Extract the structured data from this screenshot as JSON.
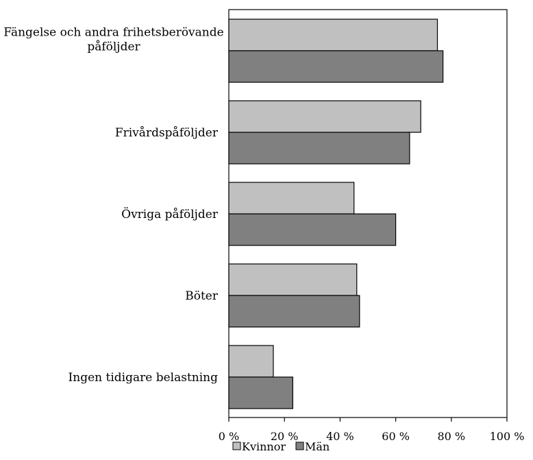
{
  "chart_data": {
    "type": "bar",
    "orientation": "horizontal",
    "categories": [
      [
        "Fängelse och andra frihetsberövande",
        "påföljder"
      ],
      [
        "Frivårdspåföljder"
      ],
      [
        "Övriga påföljder"
      ],
      [
        "Böter"
      ],
      [
        "Ingen tidigare belastning"
      ]
    ],
    "series": [
      {
        "name": "Kvinnor",
        "values": [
          75,
          69,
          45,
          46,
          16
        ],
        "color": "#c0c0c0"
      },
      {
        "name": "Män",
        "values": [
          77,
          65,
          60,
          47,
          23
        ],
        "color": "#808080"
      }
    ],
    "xlim": [
      0,
      100
    ],
    "xticks": [
      0,
      20,
      40,
      60,
      80,
      100
    ],
    "tick_labels": [
      "0 %",
      "20 %",
      "40 %",
      "60 %",
      "80 %",
      "100 %"
    ],
    "legend_position": "bottom",
    "grid": false
  }
}
